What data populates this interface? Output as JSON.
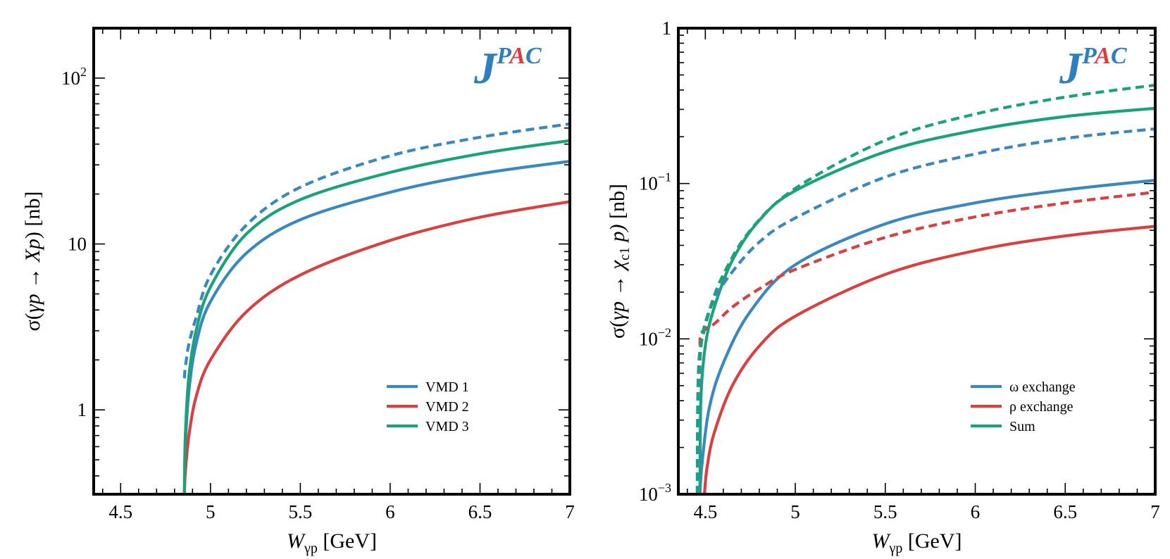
{
  "charts": [
    {
      "type": "line",
      "scale_y": "log",
      "xlim": [
        4.35,
        7.0
      ],
      "ylim": [
        0.31,
        200
      ],
      "x_ticks": [
        {
          "v": 4.5,
          "label": "4.5"
        },
        {
          "v": 5,
          "label": "5"
        },
        {
          "v": 5.5,
          "label": "5.5"
        },
        {
          "v": 6,
          "label": "6"
        },
        {
          "v": 6.5,
          "label": "6.5"
        },
        {
          "v": 7,
          "label": "7"
        }
      ],
      "y_ticks": [
        {
          "v": 1,
          "base": "1",
          "exp": ""
        },
        {
          "v": 10,
          "base": "10",
          "exp": ""
        },
        {
          "v": 100,
          "base": "10",
          "exp": "2"
        }
      ],
      "xlabel": {
        "var": "W",
        "sub": "γp",
        "unit": "[GeV]"
      },
      "ylabel": {
        "pre": "σ(",
        "italic1": "γp",
        "arrow": " → ",
        "italic2": "Xp",
        "post": ")",
        "sub": "",
        "unit": "[nb]"
      },
      "logo": {
        "main": "J",
        "sup1": "P",
        "sup2": "A",
        "sup3": "C",
        "color_main": "#2e7fbd",
        "color_accent": "#e03c3c"
      },
      "legend": {
        "placement": "lower-right",
        "entries": [
          {
            "label": "VMD 1",
            "color": "#3a88c0"
          },
          {
            "label": "VMD 2",
            "color": "#d94040"
          },
          {
            "label": "VMD 3",
            "color": "#1aa37a"
          }
        ]
      },
      "series": [
        {
          "name": "VMD 1",
          "color": "#3a88c0",
          "dash": false,
          "x": [
            4.855,
            4.86,
            4.88,
            4.92,
            5.0,
            5.2,
            5.5,
            6.0,
            6.5,
            7.0
          ],
          "y": [
            0.31,
            0.6,
            1.3,
            2.5,
            4.5,
            8.8,
            14.0,
            20.5,
            26.5,
            31.5
          ]
        },
        {
          "name": "VMD 2",
          "color": "#d94040",
          "dash": false,
          "x": [
            4.855,
            4.86,
            4.88,
            4.92,
            5.0,
            5.2,
            5.5,
            6.0,
            6.5,
            7.0
          ],
          "y": [
            0.31,
            0.42,
            0.7,
            1.2,
            2.0,
            3.9,
            6.5,
            10.5,
            14.5,
            18.0
          ]
        },
        {
          "name": "VMD 3",
          "color": "#1aa37a",
          "dash": false,
          "x": [
            4.855,
            4.86,
            4.88,
            4.92,
            5.0,
            5.2,
            5.5,
            6.0,
            6.5,
            7.0
          ],
          "y": [
            0.31,
            0.7,
            1.6,
            3.0,
            5.5,
            11.5,
            18.5,
            27.0,
            35.0,
            42.0
          ]
        },
        {
          "name": "",
          "color": "#3a88c0",
          "dash": true,
          "x": [
            4.855,
            4.86,
            4.88,
            4.92,
            5.0,
            5.2,
            5.5,
            6.0,
            6.5,
            7.0
          ],
          "y": [
            1.55,
            1.8,
            2.5,
            3.6,
            6.5,
            13.0,
            22.0,
            34.0,
            44.0,
            53.0
          ]
        }
      ]
    },
    {
      "type": "line",
      "scale_y": "log",
      "xlim": [
        4.35,
        7.0
      ],
      "ylim": [
        0.001,
        1.0
      ],
      "x_ticks": [
        {
          "v": 4.5,
          "label": "4.5"
        },
        {
          "v": 5,
          "label": "5"
        },
        {
          "v": 5.5,
          "label": "5.5"
        },
        {
          "v": 6,
          "label": "6"
        },
        {
          "v": 6.5,
          "label": "6.5"
        },
        {
          "v": 7,
          "label": "7"
        }
      ],
      "y_ticks": [
        {
          "v": 0.001,
          "base": "10",
          "exp": "−3"
        },
        {
          "v": 0.01,
          "base": "10",
          "exp": "−2"
        },
        {
          "v": 0.1,
          "base": "10",
          "exp": "−1"
        },
        {
          "v": 1,
          "base": "1",
          "exp": ""
        }
      ],
      "xlabel": {
        "var": "W",
        "sub": "γp",
        "unit": "[GeV]"
      },
      "ylabel": {
        "pre": "σ(",
        "italic1": "γp",
        "arrow": " → ",
        "italic2": "χ",
        "post": " p)",
        "sub": "c1",
        "unit": "[nb]"
      },
      "logo": {
        "main": "J",
        "sup1": "P",
        "sup2": "A",
        "sup3": "C",
        "color_main": "#2e7fbd",
        "color_accent": "#e03c3c"
      },
      "legend": {
        "placement": "lower-right",
        "entries": [
          {
            "label": "ω exchange",
            "color": "#3a88c0"
          },
          {
            "label": "ρ exchange",
            "color": "#d94040"
          },
          {
            "label": "Sum",
            "color": "#1aa37a"
          }
        ]
      },
      "series": [
        {
          "name": "ω exchange",
          "color": "#3a88c0",
          "dash": false,
          "x": [
            4.47,
            4.48,
            4.52,
            4.6,
            4.75,
            5.0,
            5.5,
            6.0,
            6.5,
            7.0
          ],
          "y": [
            0.001,
            0.0015,
            0.0035,
            0.007,
            0.015,
            0.03,
            0.055,
            0.075,
            0.091,
            0.105
          ]
        },
        {
          "name": "ρ exchange",
          "color": "#d94040",
          "dash": false,
          "x": [
            4.495,
            4.51,
            4.55,
            4.65,
            4.8,
            5.0,
            5.5,
            6.0,
            6.5,
            7.0
          ],
          "y": [
            0.001,
            0.0015,
            0.0025,
            0.005,
            0.009,
            0.014,
            0.026,
            0.037,
            0.046,
            0.053
          ]
        },
        {
          "name": "Sum",
          "color": "#1aa37a",
          "dash": false,
          "x": [
            4.47,
            4.475,
            4.5,
            4.55,
            4.65,
            4.8,
            5.0,
            5.5,
            6.0,
            6.5,
            7.0
          ],
          "y": [
            0.001,
            0.004,
            0.009,
            0.016,
            0.032,
            0.058,
            0.09,
            0.16,
            0.22,
            0.27,
            0.305
          ]
        },
        {
          "name": "",
          "color": "#3a88c0",
          "dash": true,
          "x": [
            4.46,
            4.47,
            4.5,
            4.55,
            4.65,
            4.8,
            5.0,
            5.5,
            6.0,
            6.5,
            7.0
          ],
          "y": [
            0.001,
            0.007,
            0.012,
            0.018,
            0.027,
            0.042,
            0.06,
            0.11,
            0.155,
            0.195,
            0.225
          ]
        },
        {
          "name": "",
          "color": "#d94040",
          "dash": true,
          "x": [
            4.47,
            4.48,
            4.55,
            4.65,
            4.8,
            5.0,
            5.5,
            6.0,
            6.5,
            7.0
          ],
          "y": [
            0.009,
            0.011,
            0.0125,
            0.016,
            0.021,
            0.028,
            0.045,
            0.061,
            0.075,
            0.088
          ]
        },
        {
          "name": "",
          "color": "#1aa37a",
          "dash": true,
          "x": [
            4.455,
            4.46,
            4.48,
            4.52,
            4.6,
            4.75,
            5.0,
            5.5,
            6.0,
            6.5,
            7.0
          ],
          "y": [
            0.001,
            0.0055,
            0.01,
            0.015,
            0.026,
            0.05,
            0.093,
            0.19,
            0.28,
            0.36,
            0.43
          ]
        }
      ]
    }
  ]
}
